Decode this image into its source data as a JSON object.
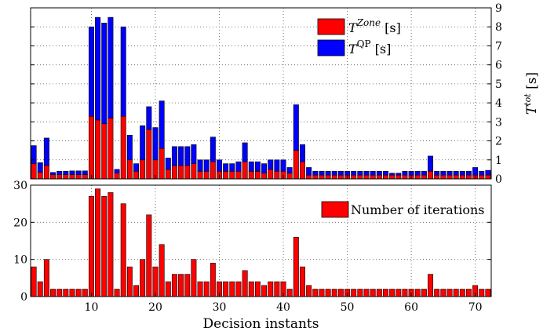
{
  "chart_data": [
    {
      "type": "bar",
      "stacked": true,
      "x": [
        1,
        2,
        3,
        4,
        5,
        6,
        7,
        8,
        9,
        10,
        11,
        12,
        13,
        14,
        15,
        16,
        17,
        18,
        19,
        20,
        21,
        22,
        23,
        24,
        25,
        26,
        27,
        28,
        29,
        30,
        31,
        32,
        33,
        34,
        35,
        36,
        37,
        38,
        39,
        40,
        41,
        42,
        43,
        44,
        45,
        46,
        47,
        48,
        49,
        50,
        51,
        52,
        53,
        54,
        55,
        56,
        57,
        58,
        59,
        60,
        61,
        62,
        63,
        64,
        65,
        66,
        67,
        68,
        69,
        70,
        71,
        72
      ],
      "series": [
        {
          "name": "T^{Zone} [s]",
          "name_base": "T",
          "name_sup": "Zone",
          "name_unit": " [s]",
          "color": "#ff0000",
          "values": [
            0.8,
            0.35,
            0.7,
            0.22,
            0.22,
            0.22,
            0.22,
            0.22,
            0.22,
            3.3,
            3.1,
            2.9,
            3.2,
            0.3,
            3.3,
            1.0,
            0.4,
            1.0,
            2.6,
            1.0,
            1.6,
            0.5,
            0.7,
            0.7,
            0.7,
            0.8,
            0.4,
            0.4,
            0.9,
            0.4,
            0.4,
            0.4,
            0.4,
            0.9,
            0.4,
            0.4,
            0.3,
            0.5,
            0.4,
            0.4,
            0.3,
            1.5,
            0.9,
            0.2,
            0.2,
            0.2,
            0.2,
            0.2,
            0.2,
            0.2,
            0.2,
            0.2,
            0.2,
            0.2,
            0.2,
            0.2,
            0.2,
            0.2,
            0.2,
            0.2,
            0.2,
            0.2,
            0.4,
            0.2,
            0.2,
            0.2,
            0.2,
            0.2,
            0.2,
            0.2,
            0.2,
            0.2
          ]
        },
        {
          "name": "T^{QP} [s]",
          "name_base": "T",
          "name_sup": "QP",
          "name_unit": " [s]",
          "color": "#0000ff",
          "values": [
            0.95,
            0.5,
            1.45,
            0.12,
            0.18,
            0.18,
            0.2,
            0.2,
            0.2,
            4.7,
            5.4,
            5.3,
            5.3,
            0.2,
            4.7,
            1.3,
            0.4,
            1.8,
            1.2,
            1.7,
            2.5,
            0.6,
            1.0,
            1.0,
            1.0,
            1.0,
            0.6,
            0.6,
            1.3,
            0.6,
            0.4,
            0.4,
            0.5,
            1.0,
            0.5,
            0.5,
            0.5,
            0.5,
            0.6,
            0.6,
            0.3,
            2.4,
            0.9,
            0.4,
            0.2,
            0.2,
            0.2,
            0.2,
            0.2,
            0.2,
            0.2,
            0.2,
            0.2,
            0.2,
            0.2,
            0.2,
            0.1,
            0.1,
            0.2,
            0.2,
            0.2,
            0.2,
            0.8,
            0.2,
            0.2,
            0.2,
            0.2,
            0.2,
            0.2,
            0.4,
            0.2,
            0.25
          ]
        }
      ],
      "ylabel": "T^{tot} [s]",
      "ylabel_base": "T",
      "ylabel_sup": "tot",
      "ylabel_unit": " [s]",
      "ylim": [
        0,
        9
      ],
      "yticks": [
        0,
        1,
        2,
        3,
        4,
        5,
        6,
        7,
        8,
        9
      ],
      "yaxis_side": "right",
      "xlim": [
        0.5,
        72.5
      ],
      "grid": true,
      "legend": "top-right"
    },
    {
      "type": "bar",
      "x": [
        1,
        2,
        3,
        4,
        5,
        6,
        7,
        8,
        9,
        10,
        11,
        12,
        13,
        14,
        15,
        16,
        17,
        18,
        19,
        20,
        21,
        22,
        23,
        24,
        25,
        26,
        27,
        28,
        29,
        30,
        31,
        32,
        33,
        34,
        35,
        36,
        37,
        38,
        39,
        40,
        41,
        42,
        43,
        44,
        45,
        46,
        47,
        48,
        49,
        50,
        51,
        52,
        53,
        54,
        55,
        56,
        57,
        58,
        59,
        60,
        61,
        62,
        63,
        64,
        65,
        66,
        67,
        68,
        69,
        70,
        71,
        72
      ],
      "series": [
        {
          "name": "Number of iterations",
          "color": "#ff0000",
          "values": [
            8,
            4,
            10,
            2,
            2,
            2,
            2,
            2,
            2,
            27,
            29,
            27,
            28,
            2,
            25,
            8,
            3,
            10,
            22,
            8,
            14,
            4,
            6,
            6,
            6,
            10,
            4,
            4,
            9,
            4,
            4,
            4,
            4,
            7,
            4,
            4,
            3,
            4,
            4,
            4,
            2,
            16,
            8,
            3,
            2,
            2,
            2,
            2,
            2,
            2,
            2,
            2,
            2,
            2,
            2,
            2,
            2,
            2,
            2,
            2,
            2,
            2,
            6,
            2,
            2,
            2,
            2,
            2,
            2,
            3,
            2,
            2
          ]
        }
      ],
      "xlabel": "Decision instants",
      "ylim": [
        0,
        30
      ],
      "yticks": [
        0,
        10,
        20,
        30
      ],
      "xlim": [
        0.5,
        72.5
      ],
      "xticks": [
        10,
        20,
        30,
        40,
        50,
        60,
        70
      ],
      "grid": true,
      "legend": "top-right"
    }
  ]
}
